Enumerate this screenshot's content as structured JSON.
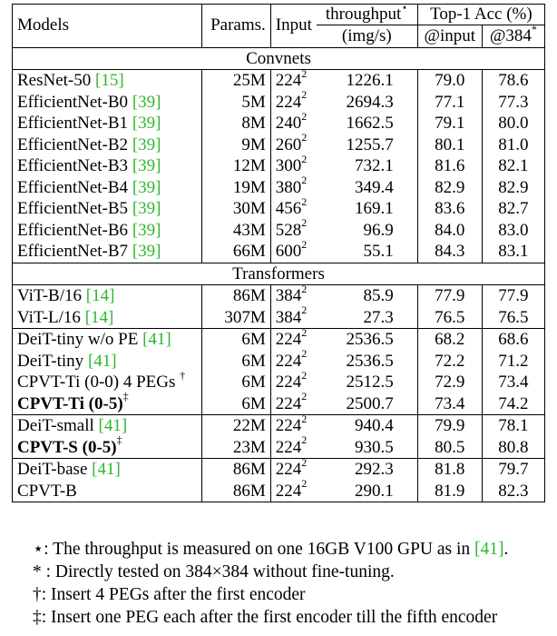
{
  "headers": {
    "models": "Models",
    "params": "Params.",
    "input": "Input",
    "throughput": "throughput",
    "throughput_mark": "⋆",
    "throughput_unit": "(img/s)",
    "top1": "Top-1 Acc (%)",
    "at_input": "@input",
    "at384": "@384",
    "at384_mark": "*"
  },
  "sections": {
    "convnets": "Convnets",
    "transformers": "Transformers"
  },
  "convnets": [
    {
      "name": "ResNet-50 ",
      "cite": "[15]",
      "params": "25M",
      "input": "224",
      "input_exp": "2",
      "throughput": "1226.1",
      "acc_input": "79.0",
      "acc_384": "78.6"
    },
    {
      "name": "EfficientNet-B0 ",
      "cite": "[39]",
      "params": "5M",
      "input": "224",
      "input_exp": "2",
      "throughput": "2694.3",
      "acc_input": "77.1",
      "acc_384": "77.3"
    },
    {
      "name": "EfficientNet-B1 ",
      "cite": "[39]",
      "params": "8M",
      "input": "240",
      "input_exp": "2",
      "throughput": "1662.5",
      "acc_input": "79.1",
      "acc_384": "80.0"
    },
    {
      "name": "EfficientNet-B2 ",
      "cite": "[39]",
      "params": "9M",
      "input": "260",
      "input_exp": "2",
      "throughput": "1255.7",
      "acc_input": "80.1",
      "acc_384": "81.0"
    },
    {
      "name": "EfficientNet-B3 ",
      "cite": "[39]",
      "params": "12M",
      "input": "300",
      "input_exp": "2",
      "throughput": "732.1",
      "acc_input": "81.6",
      "acc_384": "82.1"
    },
    {
      "name": "EfficientNet-B4 ",
      "cite": "[39]",
      "params": "19M",
      "input": "380",
      "input_exp": "2",
      "throughput": "349.4",
      "acc_input": "82.9",
      "acc_384": "82.9"
    },
    {
      "name": "EfficientNet-B5 ",
      "cite": "[39]",
      "params": "30M",
      "input": "456",
      "input_exp": "2",
      "throughput": "169.1",
      "acc_input": "83.6",
      "acc_384": "82.7"
    },
    {
      "name": "EfficientNet-B6 ",
      "cite": "[39]",
      "params": "43M",
      "input": "528",
      "input_exp": "2",
      "throughput": "96.9",
      "acc_input": "84.0",
      "acc_384": "83.0"
    },
    {
      "name": "EfficientNet-B7 ",
      "cite": "[39]",
      "params": "66M",
      "input": "600",
      "input_exp": "2",
      "throughput": "55.1",
      "acc_input": "84.3",
      "acc_384": "83.1"
    }
  ],
  "vit": [
    {
      "name": "ViT-B/16 ",
      "cite": "[14]",
      "params": "86M",
      "input": "384",
      "input_exp": "2",
      "throughput": "85.9",
      "acc_input": "77.9",
      "acc_384": "77.9"
    },
    {
      "name": "ViT-L/16 ",
      "cite": "[14]",
      "params": "307M",
      "input": "384",
      "input_exp": "2",
      "throughput": "27.3",
      "acc_input": "76.5",
      "acc_384": "76.5"
    }
  ],
  "tiny": [
    {
      "name": "DeiT-tiny w/o PE ",
      "cite": "[41]",
      "params": "6M",
      "input": "224",
      "input_exp": "2",
      "throughput": "2536.5",
      "acc_input": "68.2",
      "acc_384": "68.6"
    },
    {
      "name": "DeiT-tiny ",
      "cite": "[41]",
      "params": "6M",
      "input": "224",
      "input_exp": "2",
      "throughput": "2536.5",
      "acc_input": "72.2",
      "acc_384": "71.2"
    },
    {
      "name": "CPVT-Ti (0-0) 4 PEGs ",
      "mark": "†",
      "params": "6M",
      "input": "224",
      "input_exp": "2",
      "throughput": "2512.5",
      "acc_input": "72.9",
      "acc_384": "73.4"
    }
  ],
  "tiny_ours": {
    "name": "CPVT-Ti (0-5)",
    "mark": "‡",
    "params": "6M",
    "input": "224",
    "input_exp": "2",
    "throughput": "2500.7",
    "acc_input": "73.4",
    "acc_384": "74.2"
  },
  "small": {
    "name": "DeiT-small ",
    "cite": "[41]",
    "params": "22M",
    "input": "224",
    "input_exp": "2",
    "throughput": "940.4",
    "acc_input": "79.9",
    "acc_384": "78.1"
  },
  "small_ours": {
    "name": "CPVT-S (0-5)",
    "mark": "‡",
    "params": "23M",
    "input": "224",
    "input_exp": "2",
    "throughput": "930.5",
    "acc_input": "80.5",
    "acc_384": "80.8"
  },
  "base": {
    "name": "DeiT-base ",
    "cite": "[41]",
    "params": "86M",
    "input": "224",
    "input_exp": "2",
    "throughput": "292.3",
    "acc_input": "81.8",
    "acc_384": "79.7"
  },
  "base_ours": {
    "name": "CPVT-B",
    "params": "86M",
    "input": "224",
    "input_exp": "2",
    "throughput": "290.1",
    "acc_input": "81.9",
    "acc_384": "82.3"
  },
  "notes": {
    "n1_mark": "⋆",
    "n1_text": ": The throughput is measured on one 16GB V100 GPU as in ",
    "n1_cite": "[41]",
    "n1_end": ".",
    "n2_mark": "*",
    "n2_text": " : Directly tested on 384×384 without fine-tuning.",
    "n3_mark": "†",
    "n3_text": ": Insert 4 PEGs after the first encoder",
    "n4_mark": "‡",
    "n4_text": ": Insert one PEG each after the first encoder till the fifth encoder"
  }
}
